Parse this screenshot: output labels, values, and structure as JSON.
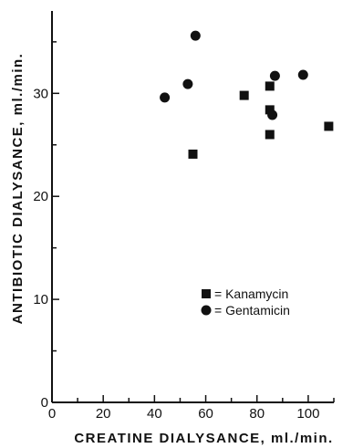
{
  "chart_data": {
    "type": "scatter",
    "xlabel": "CREATINE DIALYSANCE, ml./min.",
    "ylabel": "ANTIBIOTIC DIALYSANCE, ml./min.",
    "xlim": [
      0,
      110
    ],
    "ylim": [
      0,
      38
    ],
    "x_ticks": [
      0,
      20,
      40,
      60,
      80,
      100
    ],
    "y_ticks": [
      0,
      10,
      20,
      30
    ],
    "series": [
      {
        "name": "Kanamycin",
        "marker": "square",
        "color": "#111111",
        "points": [
          {
            "x": 55,
            "y": 24.1
          },
          {
            "x": 75,
            "y": 29.8
          },
          {
            "x": 85,
            "y": 30.7
          },
          {
            "x": 85,
            "y": 28.4
          },
          {
            "x": 85,
            "y": 26.0
          },
          {
            "x": 108,
            "y": 26.8
          }
        ]
      },
      {
        "name": "Gentamicin",
        "marker": "circle",
        "color": "#111111",
        "points": [
          {
            "x": 44,
            "y": 29.6
          },
          {
            "x": 53,
            "y": 30.9
          },
          {
            "x": 56,
            "y": 35.6
          },
          {
            "x": 86,
            "y": 27.9
          },
          {
            "x": 87,
            "y": 31.7
          },
          {
            "x": 98,
            "y": 31.8
          }
        ]
      }
    ],
    "legend": {
      "placement": "lower-right",
      "entries": [
        {
          "marker": "square",
          "label": "= Kanamycin"
        },
        {
          "marker": "circle",
          "label": "= Gentamicin"
        }
      ]
    },
    "grid": false
  }
}
